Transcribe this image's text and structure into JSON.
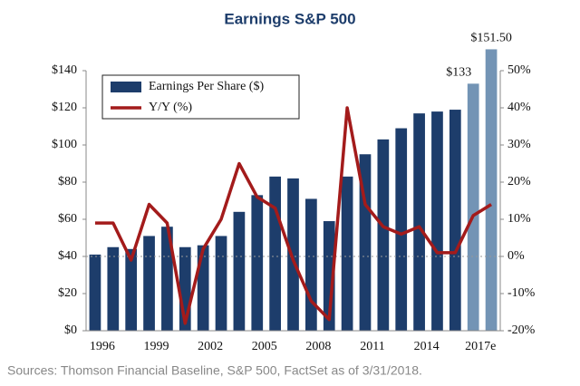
{
  "chart_data": {
    "type": "bar_line",
    "title": "Earnings S&P 500",
    "source": "Sources: Thomson Financial Baseline, S&P 500, FactSet as of 3/31/2018.",
    "categories": [
      "1996",
      null,
      null,
      "1999",
      null,
      null,
      "2002",
      null,
      null,
      "2005",
      null,
      null,
      "2008",
      null,
      null,
      "2011",
      null,
      null,
      "2014",
      null,
      null,
      "2017e",
      null
    ],
    "series": [
      {
        "name": "Earnings Per Share ($)",
        "type": "bar",
        "color": "#1d3d6b",
        "colors": [
          "#1d3d6b",
          "#1d3d6b",
          "#1d3d6b",
          "#1d3d6b",
          "#1d3d6b",
          "#1d3d6b",
          "#1d3d6b",
          "#1d3d6b",
          "#1d3d6b",
          "#1d3d6b",
          "#1d3d6b",
          "#1d3d6b",
          "#1d3d6b",
          "#1d3d6b",
          "#1d3d6b",
          "#1d3d6b",
          "#1d3d6b",
          "#1d3d6b",
          "#1d3d6b",
          "#1d3d6b",
          "#1d3d6b",
          "#7394b5",
          "#7394b5"
        ],
        "values": [
          41,
          45,
          44,
          51,
          56,
          45,
          46,
          51,
          64,
          73,
          83,
          82,
          71,
          59,
          83,
          95,
          103,
          109,
          117,
          118,
          119,
          133,
          151.5
        ],
        "value_labels": [
          null,
          null,
          null,
          null,
          null,
          null,
          null,
          null,
          null,
          null,
          null,
          null,
          null,
          null,
          null,
          null,
          null,
          null,
          null,
          null,
          null,
          "$133",
          "$151.50"
        ]
      },
      {
        "name": "Y/Y (%)",
        "type": "line",
        "axis": "y2",
        "color": "#a31b1b",
        "values": [
          9,
          9,
          -1,
          14,
          9,
          -18,
          2,
          10,
          25,
          16,
          13,
          -1,
          -12,
          -17,
          40,
          14,
          8,
          6,
          8,
          1,
          1,
          11,
          14
        ]
      }
    ],
    "ylim": [
      0,
      140
    ],
    "yticks": [
      {
        "value": 0,
        "label": "$0"
      },
      {
        "value": 20,
        "label": "$20"
      },
      {
        "value": 40,
        "label": "$40"
      },
      {
        "value": 60,
        "label": "$60"
      },
      {
        "value": 80,
        "label": "$80"
      },
      {
        "value": 100,
        "label": "$100"
      },
      {
        "value": 120,
        "label": "$120"
      },
      {
        "value": 140,
        "label": "$140"
      }
    ],
    "y2lim": [
      -20,
      50
    ],
    "y2ticks": [
      {
        "value": -20,
        "label": "-20%"
      },
      {
        "value": -10,
        "label": "-10%"
      },
      {
        "value": 0,
        "label": "0%"
      },
      {
        "value": 10,
        "label": "10%"
      },
      {
        "value": 20,
        "label": "20%"
      },
      {
        "value": 30,
        "label": "30%"
      },
      {
        "value": 40,
        "label": "40%"
      },
      {
        "value": 50,
        "label": "50%"
      }
    ],
    "legend": "upper left"
  }
}
